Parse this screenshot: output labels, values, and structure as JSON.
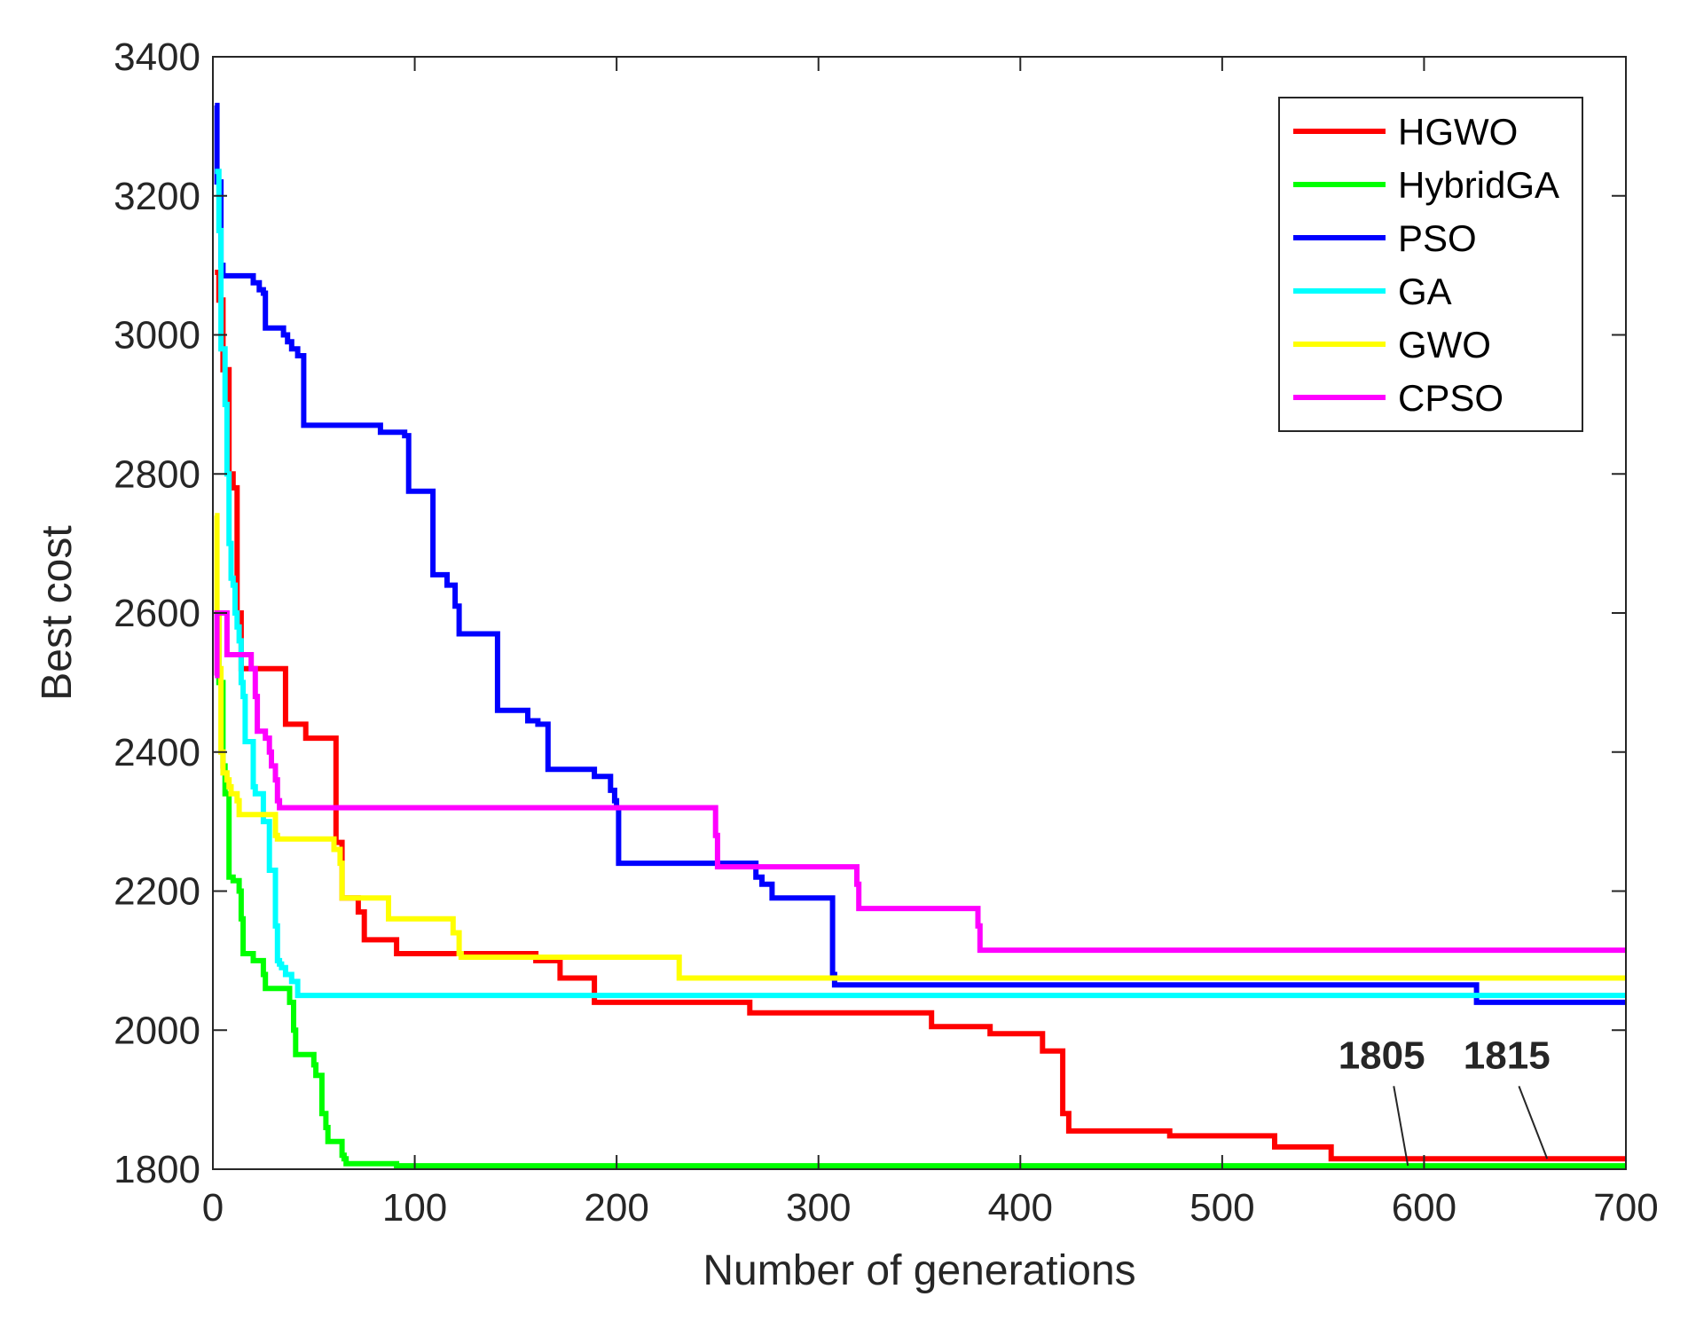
{
  "chart_data": {
    "type": "line",
    "title": "",
    "xlabel": "Number of generations",
    "ylabel": "Best cost",
    "xlim": [
      0,
      700
    ],
    "ylim": [
      1800,
      3400
    ],
    "xticks": [
      0,
      100,
      200,
      300,
      400,
      500,
      600,
      700
    ],
    "yticks": [
      1800,
      2000,
      2200,
      2400,
      2600,
      2800,
      3000,
      3200,
      3400
    ],
    "grid": false,
    "legend_position": "top-right",
    "series": [
      {
        "name": "HGWO",
        "color": "#ff0000",
        "x": [
          1,
          3,
          5,
          8,
          10,
          12,
          14,
          15,
          35,
          36,
          45,
          46,
          60,
          61,
          64,
          70,
          72,
          75,
          90,
          91,
          160,
          171,
          172,
          188,
          189,
          265,
          266,
          355,
          356,
          384,
          385,
          410,
          411,
          420,
          421,
          423,
          424,
          473,
          474,
          525,
          526,
          553,
          554,
          700
        ],
        "y": [
          3090,
          3050,
          2950,
          2800,
          2780,
          2600,
          2520,
          2520,
          2520,
          2440,
          2440,
          2420,
          2420,
          2270,
          2190,
          2190,
          2170,
          2130,
          2130,
          2110,
          2100,
          2100,
          2075,
          2075,
          2040,
          2040,
          2025,
          2025,
          2005,
          2005,
          1995,
          1995,
          1970,
          1970,
          1880,
          1880,
          1855,
          1855,
          1848,
          1848,
          1832,
          1832,
          1815,
          1815
        ]
      },
      {
        "name": "HybridGA",
        "color": "#00ff00",
        "x": [
          1,
          3,
          5,
          6,
          8,
          10,
          12,
          13,
          14,
          15,
          19,
          20,
          25,
          26,
          37,
          38,
          40,
          41,
          45,
          50,
          51,
          53,
          54,
          56,
          57,
          63,
          64,
          65,
          66,
          90,
          91,
          700
        ],
        "y": [
          2600,
          2500,
          2380,
          2340,
          2220,
          2215,
          2215,
          2200,
          2160,
          2110,
          2110,
          2100,
          2080,
          2060,
          2060,
          2040,
          2000,
          1965,
          1965,
          1950,
          1935,
          1935,
          1880,
          1860,
          1840,
          1840,
          1820,
          1815,
          1808,
          1808,
          1805,
          1805
        ]
      },
      {
        "name": "PSO",
        "color": "#0000ff",
        "x": [
          1,
          2,
          4,
          5,
          19,
          20,
          22,
          23,
          25,
          26,
          34,
          35,
          36,
          37,
          38,
          39,
          41,
          42,
          44,
          45,
          82,
          83,
          94,
          95,
          96,
          97,
          108,
          109,
          115,
          116,
          119,
          120,
          121,
          122,
          140,
          141,
          155,
          156,
          160,
          161,
          165,
          166,
          188,
          189,
          196,
          197,
          198,
          199,
          200,
          201,
          268,
          269,
          271,
          272,
          276,
          277,
          306,
          307,
          308,
          625,
          626,
          700
        ],
        "y": [
          3330,
          3220,
          3100,
          3085,
          3085,
          3075,
          3075,
          3065,
          3060,
          3010,
          3010,
          3000,
          3000,
          2990,
          2990,
          2980,
          2980,
          2970,
          2970,
          2870,
          2870,
          2860,
          2860,
          2855,
          2855,
          2775,
          2775,
          2655,
          2655,
          2640,
          2640,
          2610,
          2610,
          2570,
          2570,
          2460,
          2460,
          2445,
          2445,
          2440,
          2440,
          2375,
          2375,
          2365,
          2365,
          2345,
          2345,
          2330,
          2320,
          2240,
          2240,
          2220,
          2220,
          2210,
          2210,
          2190,
          2190,
          2080,
          2065,
          2065,
          2040,
          2040
        ]
      },
      {
        "name": "GA",
        "color": "#00ffff",
        "x": [
          1,
          3,
          4,
          6,
          7,
          8,
          9,
          10,
          11,
          12,
          13,
          14,
          15,
          16,
          18,
          20,
          21,
          24,
          25,
          28,
          29,
          31,
          32,
          33,
          34,
          35,
          36,
          38,
          39,
          41,
          42,
          700
        ],
        "y": [
          3235,
          3150,
          2980,
          2900,
          2800,
          2700,
          2650,
          2640,
          2600,
          2580,
          2560,
          2500,
          2480,
          2415,
          2415,
          2350,
          2340,
          2340,
          2300,
          2230,
          2230,
          2150,
          2100,
          2095,
          2090,
          2090,
          2080,
          2080,
          2070,
          2070,
          2050,
          2050
        ]
      },
      {
        "name": "GWO",
        "color": "#ffff00",
        "x": [
          1,
          2,
          3,
          4,
          5,
          6,
          7,
          8,
          9,
          11,
          12,
          13,
          14,
          30,
          31,
          32,
          59,
          60,
          62,
          63,
          64,
          86,
          87,
          118,
          119,
          121,
          122,
          123,
          124,
          230,
          231,
          700
        ],
        "y": [
          2740,
          2600,
          2520,
          2400,
          2370,
          2370,
          2360,
          2350,
          2340,
          2340,
          2330,
          2310,
          2310,
          2310,
          2280,
          2275,
          2275,
          2260,
          2260,
          2240,
          2190,
          2190,
          2160,
          2160,
          2140,
          2140,
          2110,
          2105,
          2105,
          2105,
          2075,
          2075
        ]
      },
      {
        "name": "CPSO",
        "color": "#ff00ff",
        "x": [
          1,
          2,
          3,
          4,
          6,
          7,
          8,
          18,
          19,
          20,
          21,
          22,
          24,
          25,
          26,
          27,
          28,
          29,
          31,
          32,
          33,
          248,
          249,
          250,
          318,
          319,
          320,
          321,
          378,
          379,
          380,
          700
        ],
        "y": [
          2510,
          2600,
          2600,
          2600,
          2600,
          2540,
          2540,
          2540,
          2520,
          2520,
          2480,
          2430,
          2430,
          2430,
          2420,
          2420,
          2400,
          2380,
          2360,
          2330,
          2320,
          2320,
          2280,
          2235,
          2235,
          2210,
          2175,
          2175,
          2175,
          2150,
          2115,
          2115
        ]
      }
    ],
    "annotations": [
      {
        "text": "1805",
        "label_x": 579,
        "label_y": 1945,
        "target_x": 592,
        "target_y": 1805
      },
      {
        "text": "1815",
        "label_x": 641,
        "label_y": 1945,
        "target_x": 661,
        "target_y": 1815
      }
    ]
  }
}
